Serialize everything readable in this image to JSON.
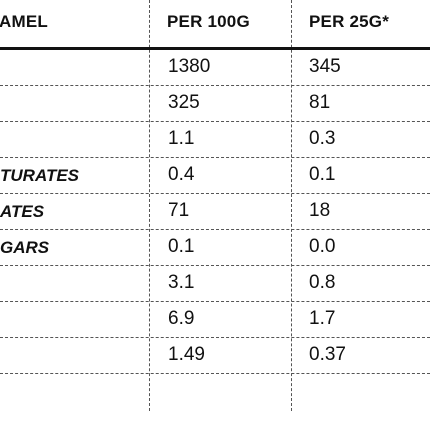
{
  "header": {
    "col_name": "AMEL",
    "col_per100": "PER 100G",
    "col_per25": "PER 25G*"
  },
  "rows": [
    {
      "label": "",
      "per100": "1380",
      "per25": "345"
    },
    {
      "label": "",
      "per100": "325",
      "per25": "81"
    },
    {
      "label": "",
      "per100": "1.1",
      "per25": "0.3"
    },
    {
      "label": "TURATES",
      "per100": "0.4",
      "per25": "0.1"
    },
    {
      "label": "ATES",
      "per100": "71",
      "per25": "18"
    },
    {
      "label": "GARS",
      "per100": "0.1",
      "per25": "0.0"
    },
    {
      "label": "",
      "per100": "3.1",
      "per25": "0.8"
    },
    {
      "label": "",
      "per100": "6.9",
      "per25": "1.7"
    },
    {
      "label": "",
      "per100": "1.49",
      "per25": "0.37"
    }
  ]
}
